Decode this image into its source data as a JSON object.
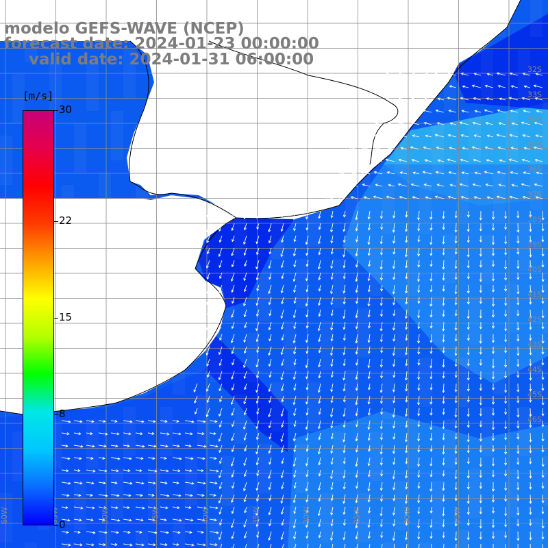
{
  "title": {
    "line1": "modelo GEFS-WAVE (NCEP)",
    "line2": "forecast date: 2024-01-23 00:00:00",
    "line3": "valid date: 2024-01-31 06:00:00"
  },
  "colorbar": {
    "unit": "[m/s]",
    "min": 0,
    "max": 30,
    "ticks": [
      "30",
      "22",
      "15",
      "8",
      "0"
    ],
    "tick_values": [
      30,
      22,
      15,
      8,
      0
    ],
    "colors": [
      "#0000ff",
      "#0a6cff",
      "#00c8ff",
      "#00e6e6",
      "#00ff00",
      "#b4ff00",
      "#ffff00",
      "#ffa000",
      "#ff3c00",
      "#ff0000",
      "#e6004b",
      "#c80078"
    ]
  },
  "map": {
    "field": "wind speed and direction",
    "colors": {
      "deep": "#0024e8",
      "mid": "#0c5bf0",
      "light": "#1e88f4",
      "pale": "#28a8f2",
      "land": "#ffffff",
      "coast": "#000000",
      "grid": "#8a8a8a",
      "arrows": "#ffffff"
    },
    "longitude_labels": [
      "60W",
      "55W",
      "50W",
      "45W",
      "40W",
      "35W",
      "30W",
      "25W",
      "20W",
      "15W"
    ],
    "latitude_labels": [
      "32S",
      "33S",
      "34S",
      "35S",
      "36S",
      "37S",
      "38S",
      "39S",
      "40S",
      "41S",
      "42S",
      "43S",
      "44S",
      "45S",
      "46S"
    ]
  }
}
